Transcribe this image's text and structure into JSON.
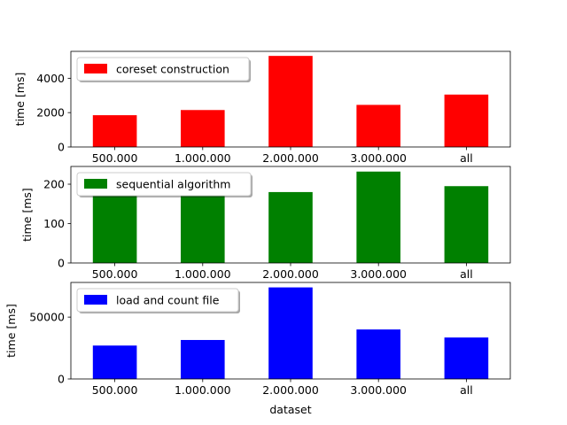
{
  "chart_data": [
    {
      "type": "bar",
      "categories": [
        "500.000",
        "1.000.000",
        "2.000.000",
        "3.000.000",
        "all"
      ],
      "series": [
        {
          "name": "coreset construction",
          "values": [
            1850,
            2150,
            5300,
            2450,
            3050
          ]
        }
      ],
      "xlabel": "",
      "ylabel": "time [ms]",
      "ylim": [
        0,
        5565
      ],
      "yticks": [
        0,
        2000,
        4000
      ],
      "color": "#ff0000",
      "legend": "top-left",
      "grid": false
    },
    {
      "type": "bar",
      "categories": [
        "500.000",
        "1.000.000",
        "2.000.000",
        "3.000.000",
        "all"
      ],
      "series": [
        {
          "name": "sequential algorithm",
          "values": [
            183,
            172,
            180,
            232,
            195
          ]
        }
      ],
      "xlabel": "",
      "ylabel": "time [ms]",
      "ylim": [
        0,
        245
      ],
      "yticks": [
        0,
        100,
        200
      ],
      "color": "#008000",
      "legend": "top-left",
      "grid": false
    },
    {
      "type": "bar",
      "categories": [
        "500.000",
        "1.000.000",
        "2.000.000",
        "3.000.000",
        "all"
      ],
      "series": [
        {
          "name": "load and count file",
          "values": [
            27000,
            31500,
            74000,
            40000,
            33500
          ]
        }
      ],
      "xlabel": "dataset",
      "ylabel": "time [ms]",
      "ylim": [
        0,
        78000
      ],
      "yticks": [
        0,
        50000
      ],
      "color": "#0000ff",
      "legend": "top-left",
      "grid": false
    }
  ]
}
